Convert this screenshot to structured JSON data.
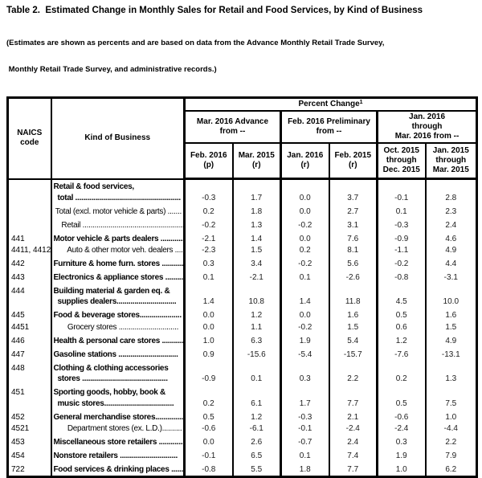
{
  "title": "Table 2.  Estimated Change in Monthly Sales for Retail and Food Services, by Kind of Business",
  "note_line1": "(Estimates are shown as percents and are based on data from the Advance Monthly Retail Trade Survey,",
  "note_line2": " Monthly Retail Trade Survey, and administrative records.)",
  "table": {
    "naics_label": "NAICS\ncode",
    "kob_label": "Kind of Business",
    "percent_change_label": "Percent Change",
    "percent_change_sup": "1",
    "groups": [
      {
        "label": "Mar. 2016 Advance\nfrom --"
      },
      {
        "label": "Feb. 2016 Preliminary\nfrom --"
      },
      {
        "label": "Jan. 2016\nthrough\nMar. 2016 from --"
      }
    ],
    "subcols": [
      "Feb. 2016\n(p)",
      "Mar. 2015\n(r)",
      "Jan. 2016\n(r)",
      "Feb. 2015\n(r)",
      "Oct. 2015\nthrough\nDec. 2015",
      "Jan. 2015\nthrough\nMar. 2015"
    ],
    "rows": [
      {
        "code": "",
        "bold": true,
        "tight": false,
        "lines": [
          "Retail & food services,",
          "  total ....................................................."
        ],
        "values": [
          "-0.3",
          "1.7",
          "0.0",
          "3.7",
          "-0.1",
          "2.8"
        ]
      },
      {
        "code": "",
        "bold": false,
        "tight": false,
        "lines": [
          " Total (excl. motor vehicle & parts) ......."
        ],
        "values": [
          "0.2",
          "1.8",
          "0.0",
          "2.7",
          "0.1",
          "2.3"
        ]
      },
      {
        "code": "",
        "bold": false,
        "tight": false,
        "lines": [
          "    Retail ..................................................."
        ],
        "values": [
          "-0.2",
          "1.3",
          "-0.2",
          "3.1",
          "-0.3",
          "2.4"
        ]
      },
      {
        "code": "441",
        "bold": true,
        "tight": false,
        "lines": [
          "Motor vehicle & parts dealers ............."
        ],
        "values": [
          "-2.1",
          "1.4",
          "0.0",
          "7.6",
          "-0.9",
          "4.6"
        ]
      },
      {
        "code": "4411, 4412",
        "bold": false,
        "tight": true,
        "lines": [
          "       Auto & other motor veh. dealers ......"
        ],
        "values": [
          "-2.3",
          "1.5",
          "0.2",
          "8.1",
          "-1.1",
          "4.9"
        ]
      },
      {
        "code": "442",
        "bold": true,
        "tight": false,
        "lines": [
          "Furniture & home furn. stores .............."
        ],
        "values": [
          "0.3",
          "3.4",
          "-0.2",
          "5.6",
          "-0.2",
          "4.4"
        ]
      },
      {
        "code": "443",
        "bold": true,
        "tight": false,
        "lines": [
          "Electronics & appliance stores ............."
        ],
        "values": [
          "0.1",
          "-2.1",
          "0.1",
          "-2.6",
          "-0.8",
          "-3.1"
        ]
      },
      {
        "code": "444",
        "bold": true,
        "tight": false,
        "lines": [
          "Building material & garden eq. &",
          "  supplies dealers.............................."
        ],
        "values": [
          "1.4",
          "10.8",
          "1.4",
          "11.8",
          "4.5",
          "10.0"
        ]
      },
      {
        "code": "445",
        "bold": true,
        "tight": false,
        "lines": [
          "Food & beverage stores....................."
        ],
        "values": [
          "0.0",
          "1.2",
          "0.0",
          "1.6",
          "0.5",
          "1.6"
        ]
      },
      {
        "code": "4451",
        "bold": false,
        "tight": true,
        "lines": [
          "       Grocery stores .............................."
        ],
        "values": [
          "0.0",
          "1.1",
          "-0.2",
          "1.5",
          "0.6",
          "1.5"
        ]
      },
      {
        "code": "446",
        "bold": true,
        "tight": false,
        "lines": [
          "Health & personal care stores ............."
        ],
        "values": [
          "1.0",
          "6.3",
          "1.9",
          "5.4",
          "1.2",
          "4.9"
        ]
      },
      {
        "code": "447",
        "bold": true,
        "tight": false,
        "lines": [
          "Gasoline stations .............................."
        ],
        "values": [
          "0.9",
          "-15.6",
          "-5.4",
          "-15.7",
          "-7.6",
          "-13.1"
        ]
      },
      {
        "code": "448",
        "bold": true,
        "tight": false,
        "lines": [
          "Clothing & clothing accessories",
          "  stores ..........................................."
        ],
        "values": [
          "-0.9",
          "0.1",
          "0.3",
          "2.2",
          "0.2",
          "1.3"
        ]
      },
      {
        "code": "451",
        "bold": true,
        "tight": false,
        "lines": [
          "Sporting goods, hobby, book &",
          "  music stores..................................."
        ],
        "values": [
          "0.2",
          "6.1",
          "1.7",
          "7.7",
          "0.5",
          "7.5"
        ]
      },
      {
        "code": "452",
        "bold": true,
        "tight": false,
        "lines": [
          "General merchandise stores................"
        ],
        "values": [
          "0.5",
          "1.2",
          "-0.3",
          "2.1",
          "-0.6",
          "1.0"
        ]
      },
      {
        "code": "4521",
        "bold": false,
        "tight": true,
        "lines": [
          "       Department stores (ex. L.D.).........."
        ],
        "values": [
          "-0.6",
          "-6.1",
          "-0.1",
          "-2.4",
          "-2.4",
          "-4.4"
        ]
      },
      {
        "code": "453",
        "bold": true,
        "tight": false,
        "lines": [
          "Miscellaneous store retailers ..............."
        ],
        "values": [
          "0.0",
          "2.6",
          "-0.7",
          "2.4",
          "0.3",
          "2.2"
        ]
      },
      {
        "code": "454",
        "bold": true,
        "tight": false,
        "lines": [
          "Nonstore retailers ............................."
        ],
        "values": [
          "-0.1",
          "6.5",
          "0.1",
          "7.4",
          "1.9",
          "7.9"
        ]
      },
      {
        "code": "722",
        "bold": true,
        "tight": false,
        "lines": [
          "Food services & drinking places ........."
        ],
        "values": [
          "-0.8",
          "5.5",
          "1.8",
          "7.7",
          "1.0",
          "6.2"
        ]
      }
    ]
  }
}
